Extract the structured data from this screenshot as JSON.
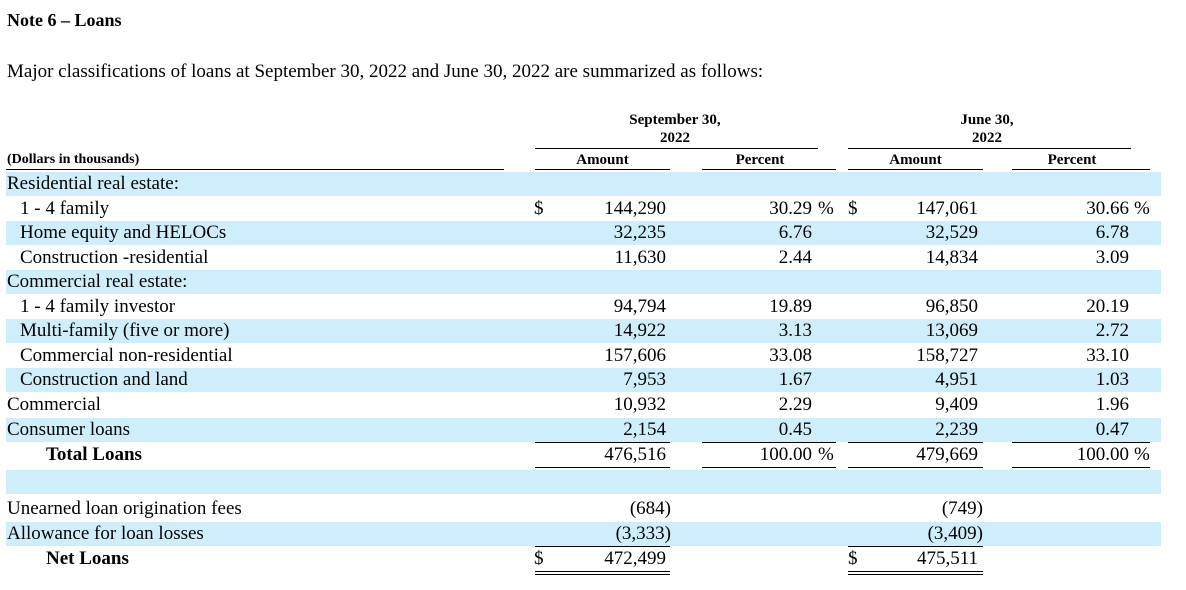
{
  "title": "Note 6 – Loans",
  "intro": "Major classifications of loans at September 30, 2022 and June 30, 2022 are summarized as follows:",
  "header": {
    "dollars_label": "(Dollars in thousands)",
    "period1_line1": "September 30,",
    "period1_line2": "2022",
    "period2_line1": "June 30,",
    "period2_line2": "2022",
    "amount": "Amount",
    "percent": "Percent"
  },
  "currency_symbol": "$",
  "percent_symbol": "%",
  "rows": [
    {
      "label": "Residential real estate:",
      "amt1": "",
      "pct1": "",
      "amt2": "",
      "pct2": ""
    },
    {
      "label": "1 - 4 family",
      "amt1": "144,290",
      "pct1": "30.29",
      "amt2": "147,061",
      "pct2": "30.66"
    },
    {
      "label": "Home equity and HELOCs",
      "amt1": "32,235",
      "pct1": "6.76",
      "amt2": "32,529",
      "pct2": "6.78"
    },
    {
      "label": "Construction -residential",
      "amt1": "11,630",
      "pct1": "2.44",
      "amt2": "14,834",
      "pct2": "3.09"
    },
    {
      "label": "Commercial real estate:",
      "amt1": "",
      "pct1": "",
      "amt2": "",
      "pct2": ""
    },
    {
      "label": "1 - 4 family investor",
      "amt1": "94,794",
      "pct1": "19.89",
      "amt2": "96,850",
      "pct2": "20.19"
    },
    {
      "label": "Multi-family (five or more)",
      "amt1": "14,922",
      "pct1": "3.13",
      "amt2": "13,069",
      "pct2": "2.72"
    },
    {
      "label": "Commercial non-residential",
      "amt1": "157,606",
      "pct1": "33.08",
      "amt2": "158,727",
      "pct2": "33.10"
    },
    {
      "label": "Construction and land",
      "amt1": "7,953",
      "pct1": "1.67",
      "amt2": "4,951",
      "pct2": "1.03"
    },
    {
      "label": "Commercial",
      "amt1": "10,932",
      "pct1": "2.29",
      "amt2": "9,409",
      "pct2": "1.96"
    },
    {
      "label": "Consumer loans",
      "amt1": "2,154",
      "pct1": "0.45",
      "amt2": "2,239",
      "pct2": "0.47"
    },
    {
      "label": "Total Loans",
      "amt1": "476,516",
      "pct1": "100.00",
      "amt2": "479,669",
      "pct2": "100.00"
    },
    {
      "label": "",
      "amt1": "",
      "pct1": "",
      "amt2": "",
      "pct2": ""
    },
    {
      "label": "Unearned loan origination fees",
      "amt1": "(684)",
      "pct1": "",
      "amt2": "(749)",
      "pct2": ""
    },
    {
      "label": "Allowance for loan losses",
      "amt1": "(3,333)",
      "pct1": "",
      "amt2": "(3,409)",
      "pct2": ""
    },
    {
      "label": "Net Loans",
      "amt1": "472,499",
      "pct1": "",
      "amt2": "475,511",
      "pct2": ""
    }
  ]
}
